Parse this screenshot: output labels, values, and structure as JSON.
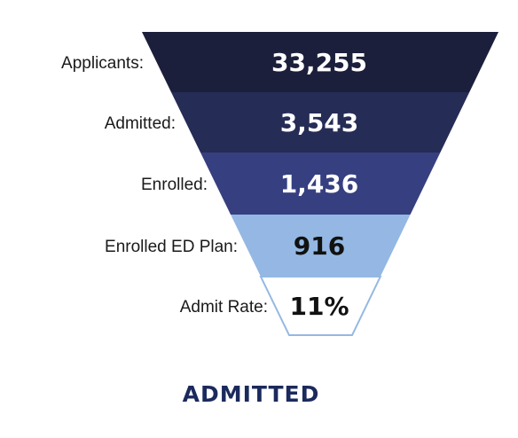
{
  "diagram": {
    "type": "funnel",
    "stages": [
      {
        "label": "Applicants:",
        "value": "33,255",
        "fill": "#1b1f3b",
        "text_color": "#ffffff"
      },
      {
        "label": "Admitted:",
        "value": "3,543",
        "fill": "#252c56",
        "text_color": "#ffffff"
      },
      {
        "label": "Enrolled:",
        "value": "1,436",
        "fill": "#363f80",
        "text_color": "#ffffff"
      },
      {
        "label": "Enrolled ED Plan:",
        "value": "916",
        "fill": "#94b8e3",
        "text_color": "#111111"
      },
      {
        "label": "Admit Rate:",
        "value": "11%",
        "fill": "#ffffff",
        "text_color": "#111111"
      }
    ],
    "outline_color": "#94b8e3",
    "caption": "ADMITTED",
    "caption_color": "#1b2a5c"
  }
}
